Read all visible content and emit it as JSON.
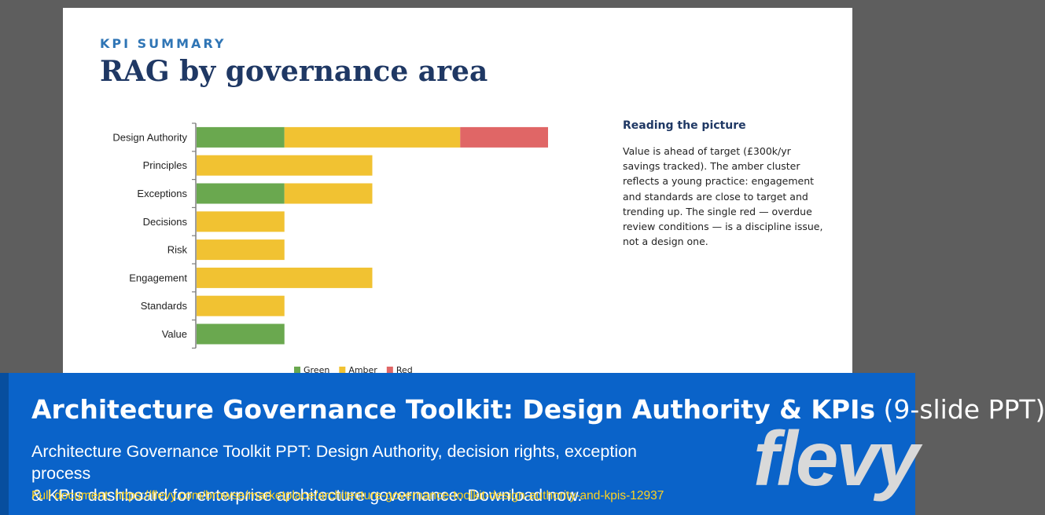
{
  "slide": {
    "eyebrow": "KPI SUMMARY",
    "title": "RAG by governance area",
    "side_heading": "Reading the picture",
    "side_body": "Value is ahead of target (£300k/yr savings tracked). The amber cluster reflects a young practice: engagement and standards are close to target and trending up. The single red — overdue review conditions — is a discipline issue, not a design one."
  },
  "chart_data": {
    "type": "bar",
    "orientation": "horizontal",
    "stacked": true,
    "categories": [
      "Design Authority",
      "Principles",
      "Exceptions",
      "Decisions",
      "Risk",
      "Engagement",
      "Standards",
      "Value"
    ],
    "series": [
      {
        "name": "Green",
        "color": "#6aa84f",
        "values": [
          1,
          0,
          1,
          0,
          0,
          0,
          0,
          1
        ]
      },
      {
        "name": "Amber",
        "color": "#f1c232",
        "values": [
          2,
          2,
          1,
          1,
          1,
          2,
          1,
          0
        ]
      },
      {
        "name": "Red",
        "color": "#e06666",
        "values": [
          1,
          0,
          0,
          0,
          0,
          0,
          0,
          0
        ]
      }
    ],
    "xlim": [
      0,
      4
    ],
    "grid": false,
    "legend_position": "bottom"
  },
  "banner": {
    "title": "Architecture Governance Toolkit: Design Authority & KPIs",
    "title_suffix": " (9-slide PPT)",
    "description_line1": "Architecture Governance Toolkit PPT: Design Authority, decision rights, exception process",
    "description_line2": "& KPIs dashboard for enterprise architecture governance. Download now.",
    "url": "Full document: https://flevy.com/browse/marketplace/architecture-governance-toolkit-design-authority-and-kpis-12937",
    "brand": "flevy"
  }
}
